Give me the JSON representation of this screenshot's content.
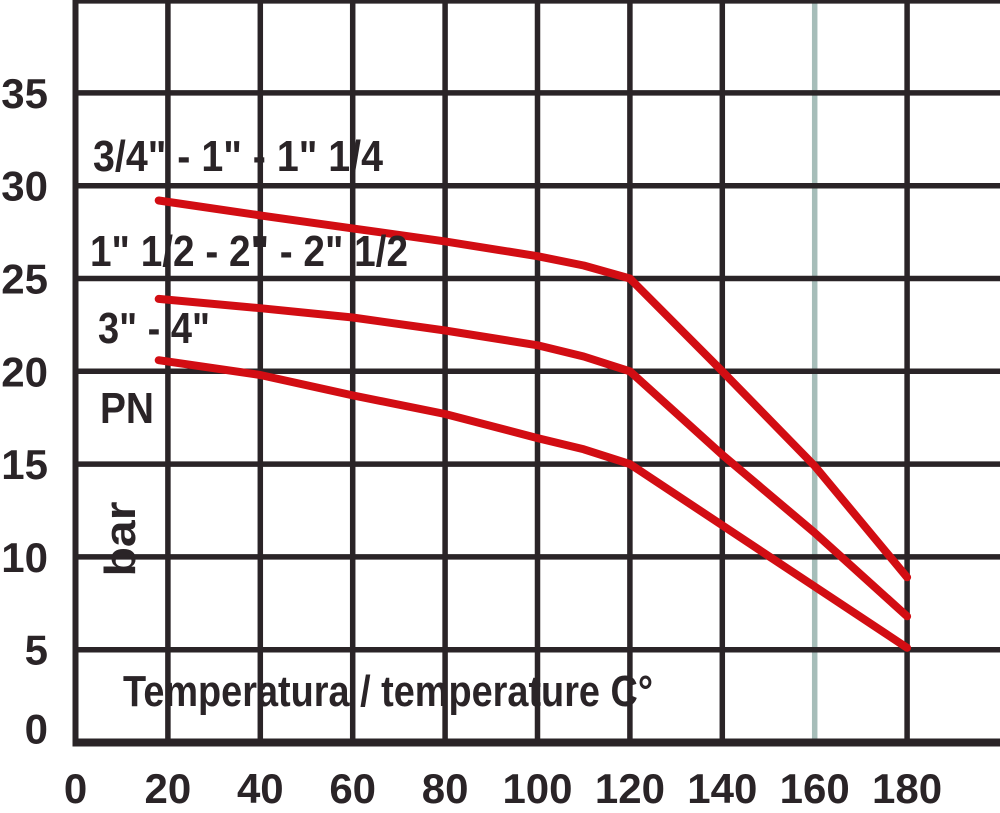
{
  "page": {
    "background": "#ffffff"
  },
  "chart_data": {
    "type": "line",
    "title": "",
    "xlabel": "Temperatura / temperature C°",
    "ylabel": "PN",
    "ylabel_unit": "bar",
    "x_ticks": [
      0,
      20,
      40,
      60,
      80,
      100,
      120,
      140,
      160,
      180
    ],
    "y_ticks": [
      0,
      5,
      10,
      15,
      20,
      25,
      30,
      35
    ],
    "xlim": [
      0,
      200
    ],
    "ylim": [
      0,
      40
    ],
    "grid": true,
    "legend_position": "on-curve-labels-top-left",
    "grid_color": "#2a2427",
    "text_color": "#2a2427",
    "curve_color": "#d20d13",
    "special_gridline": {
      "x": 160,
      "color": "#a6bdb9"
    },
    "series": [
      {
        "name": "3/4\" - 1\" - 1\" 1/4",
        "points": [
          [
            18,
            29.2
          ],
          [
            40,
            28.4
          ],
          [
            60,
            27.7
          ],
          [
            80,
            27.0
          ],
          [
            100,
            26.2
          ],
          [
            110,
            25.7
          ],
          [
            120,
            25.0
          ],
          [
            140,
            20.0
          ],
          [
            160,
            14.9
          ],
          [
            180,
            8.9
          ]
        ]
      },
      {
        "name": "1\" 1/2 - 2\" - 2\" 1/2",
        "points": [
          [
            18,
            23.9
          ],
          [
            40,
            23.4
          ],
          [
            60,
            22.9
          ],
          [
            80,
            22.2
          ],
          [
            100,
            21.4
          ],
          [
            110,
            20.8
          ],
          [
            120,
            20.0
          ],
          [
            140,
            15.5
          ],
          [
            160,
            11.3
          ],
          [
            180,
            6.8
          ]
        ]
      },
      {
        "name": "3\" - 4\"",
        "points": [
          [
            18,
            20.6
          ],
          [
            40,
            19.8
          ],
          [
            60,
            18.7
          ],
          [
            80,
            17.7
          ],
          [
            100,
            16.4
          ],
          [
            110,
            15.8
          ],
          [
            120,
            15.0
          ],
          [
            140,
            11.7
          ],
          [
            160,
            8.4
          ],
          [
            180,
            5.1
          ]
        ]
      }
    ]
  }
}
